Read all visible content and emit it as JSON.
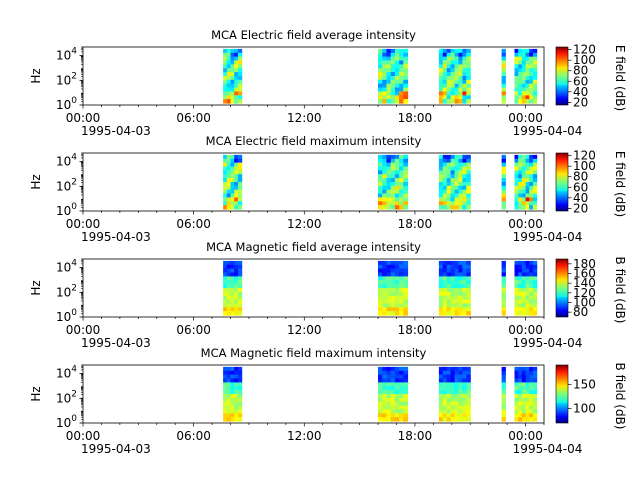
{
  "chart_data": [
    {
      "type": "heatmap",
      "title": "MCA  Electric field average intensity",
      "ylabel": "Hz",
      "yscale": "log",
      "ylim": [
        1,
        50000
      ],
      "ytick_labels": [
        "10^0",
        "10^2",
        "10^4"
      ],
      "x_tick_labels": [
        "00:00",
        "06:00",
        "12:00",
        "18:00",
        "00:00"
      ],
      "x_date_labels": [
        "1995-04-03",
        "1995-04-04"
      ],
      "colorbar_label": "E field (dB)",
      "colorbar_ticks": [
        "20",
        "40",
        "60",
        "80",
        "100",
        "120"
      ],
      "colorbar_range": [
        15,
        125
      ],
      "data_intervals_hours": [
        [
          7.6,
          8.6
        ],
        [
          16.0,
          17.6
        ],
        [
          19.3,
          21.0
        ],
        [
          22.7,
          22.9
        ],
        [
          23.4,
          24.6
        ]
      ],
      "dominant_level": "green"
    },
    {
      "type": "heatmap",
      "title": "MCA  Electric field maximum intensity",
      "ylabel": "Hz",
      "yscale": "log",
      "ylim": [
        1,
        50000
      ],
      "ytick_labels": [
        "10^0",
        "10^2",
        "10^4"
      ],
      "x_tick_labels": [
        "00:00",
        "06:00",
        "12:00",
        "18:00",
        "00:00"
      ],
      "x_date_labels": [
        "1995-04-03",
        "1995-04-04"
      ],
      "colorbar_label": "E field (dB)",
      "colorbar_ticks": [
        "20",
        "40",
        "60",
        "80",
        "100",
        "120"
      ],
      "colorbar_range": [
        15,
        125
      ],
      "data_intervals_hours": [
        [
          7.6,
          8.6
        ],
        [
          16.0,
          17.6
        ],
        [
          19.3,
          21.0
        ],
        [
          22.7,
          22.9
        ],
        [
          23.4,
          24.6
        ]
      ],
      "dominant_level": "green"
    },
    {
      "type": "heatmap",
      "title": "MCA  Magnetic field average intensity",
      "ylabel": "Hz",
      "yscale": "log",
      "ylim": [
        1,
        50000
      ],
      "ytick_labels": [
        "10^0",
        "10^2",
        "10^4"
      ],
      "x_tick_labels": [
        "00:00",
        "06:00",
        "12:00",
        "18:00",
        "00:00"
      ],
      "x_date_labels": [
        "1995-04-03",
        "1995-04-04"
      ],
      "colorbar_label": "B field (dB)",
      "colorbar_ticks": [
        "80",
        "100",
        "120",
        "140",
        "160",
        "180"
      ],
      "colorbar_range": [
        70,
        190
      ],
      "data_intervals_hours": [
        [
          7.6,
          8.6
        ],
        [
          16.0,
          17.6
        ],
        [
          19.3,
          21.0
        ],
        [
          22.7,
          22.9
        ],
        [
          23.4,
          24.6
        ]
      ],
      "dominant_level": "blue-green"
    },
    {
      "type": "heatmap",
      "title": "MCA  Magnetic field maximum intensity",
      "ylabel": "Hz",
      "yscale": "log",
      "ylim": [
        1,
        50000
      ],
      "ytick_labels": [
        "10^0",
        "10^2",
        "10^4"
      ],
      "x_tick_labels": [
        "00:00",
        "06:00",
        "12:00",
        "18:00",
        "00:00"
      ],
      "x_date_labels": [
        "1995-04-03",
        "1995-04-04"
      ],
      "colorbar_label": "B field (dB)",
      "colorbar_ticks": [
        "100",
        "150"
      ],
      "colorbar_range": [
        70,
        190
      ],
      "data_intervals_hours": [
        [
          7.6,
          8.6
        ],
        [
          16.0,
          17.6
        ],
        [
          19.3,
          21.0
        ],
        [
          22.7,
          22.9
        ],
        [
          23.4,
          24.6
        ]
      ],
      "dominant_level": "blue-green"
    }
  ]
}
